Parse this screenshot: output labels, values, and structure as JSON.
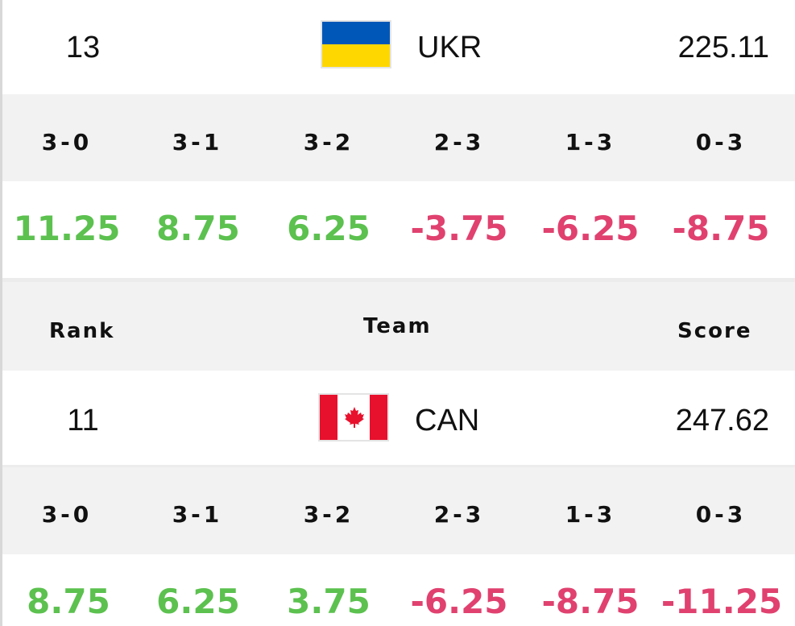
{
  "header": {
    "rank_label": "Rank",
    "team_label": "Team",
    "score_label": "Score"
  },
  "result_labels": [
    "3-0",
    "3-1",
    "3-2",
    "2-3",
    "1-3",
    "0-3"
  ],
  "colors": {
    "positive": "#5cc14f",
    "negative": "#e0416f",
    "ukraine_blue": "#0057b7",
    "ukraine_yellow": "#ffd700",
    "canada_red": "#e8112d"
  },
  "teams": [
    {
      "rank": "13",
      "code": "UKR",
      "score": "225.11",
      "flag": "ukraine-flag",
      "points": [
        "11.25",
        "8.75",
        "6.25",
        "-3.75",
        "-6.25",
        "-8.75"
      ]
    },
    {
      "rank": "11",
      "code": "CAN",
      "score": "247.62",
      "flag": "canada-flag",
      "points": [
        "8.75",
        "6.25",
        "3.75",
        "-6.25",
        "-8.75",
        "-11.25"
      ]
    }
  ]
}
